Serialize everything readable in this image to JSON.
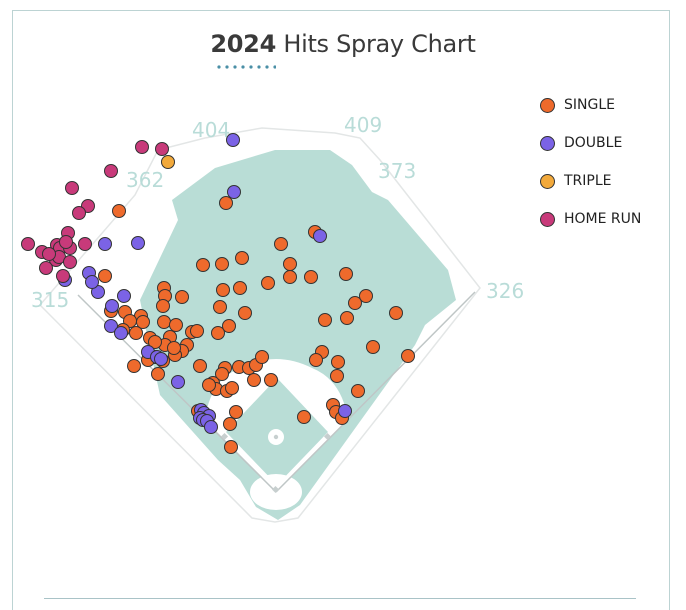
{
  "header": {
    "year": "2024",
    "title": "Hits Spray Chart"
  },
  "chart_data": {
    "type": "scatter",
    "title": "2024 Hits Spray Chart",
    "fence_distances": [
      "315",
      "362",
      "404",
      "409",
      "373",
      "326"
    ],
    "legend": [
      {
        "key": "single",
        "label": "SINGLE",
        "color": "#ee6a2c"
      },
      {
        "key": "double",
        "label": "DOUBLE",
        "color": "#7b63e6"
      },
      {
        "key": "triple",
        "label": "TRIPLE",
        "color": "#f2a93b"
      },
      {
        "key": "home_run",
        "label": "HOME RUN",
        "color": "#c83a7a"
      }
    ],
    "series": [
      {
        "name": "SINGLE",
        "color": "#ee6a2c",
        "points": [
          [
            119,
            211
          ],
          [
            226,
            203
          ],
          [
            315,
            232
          ],
          [
            281,
            244
          ],
          [
            222,
            264
          ],
          [
            242,
            258
          ],
          [
            203,
            265
          ],
          [
            290,
            264
          ],
          [
            311,
            277
          ],
          [
            290,
            277
          ],
          [
            268,
            283
          ],
          [
            346,
            274
          ],
          [
            105,
            276
          ],
          [
            164,
            288
          ],
          [
            240,
            288
          ],
          [
            223,
            290
          ],
          [
            182,
            297
          ],
          [
            165,
            296
          ],
          [
            366,
            296
          ],
          [
            355,
            303
          ],
          [
            163,
            306
          ],
          [
            245,
            313
          ],
          [
            220,
            307
          ],
          [
            111,
            311
          ],
          [
            141,
            316
          ],
          [
            143,
            322
          ],
          [
            164,
            322
          ],
          [
            125,
            312
          ],
          [
            130,
            321
          ],
          [
            347,
            318
          ],
          [
            325,
            320
          ],
          [
            396,
            313
          ],
          [
            176,
            325
          ],
          [
            123,
            330
          ],
          [
            229,
            326
          ],
          [
            136,
            333
          ],
          [
            192,
            332
          ],
          [
            197,
            331
          ],
          [
            218,
            333
          ],
          [
            170,
            337
          ],
          [
            150,
            338
          ],
          [
            165,
            345
          ],
          [
            155,
            342
          ],
          [
            187,
            345
          ],
          [
            182,
            351
          ],
          [
            175,
            355
          ],
          [
            174,
            348
          ],
          [
            322,
            352
          ],
          [
            316,
            360
          ],
          [
            338,
            362
          ],
          [
            373,
            347
          ],
          [
            408,
            356
          ],
          [
            155,
            357
          ],
          [
            148,
            360
          ],
          [
            163,
            361
          ],
          [
            158,
            374
          ],
          [
            200,
            366
          ],
          [
            225,
            368
          ],
          [
            239,
            367
          ],
          [
            249,
            368
          ],
          [
            256,
            365
          ],
          [
            262,
            357
          ],
          [
            254,
            380
          ],
          [
            271,
            380
          ],
          [
            222,
            374
          ],
          [
            213,
            383
          ],
          [
            337,
            376
          ],
          [
            358,
            391
          ],
          [
            216,
            389
          ],
          [
            227,
            391
          ],
          [
            209,
            385
          ],
          [
            232,
            388
          ],
          [
            304,
            417
          ],
          [
            236,
            412
          ],
          [
            230,
            424
          ],
          [
            333,
            405
          ],
          [
            336,
            412
          ],
          [
            342,
            418
          ],
          [
            199,
            412
          ],
          [
            231,
            447
          ],
          [
            134,
            366
          ],
          [
            198,
            411
          ]
        ]
      },
      {
        "name": "DOUBLE",
        "color": "#7b63e6",
        "points": [
          [
            233,
            140
          ],
          [
            234,
            192
          ],
          [
            320,
            236
          ],
          [
            105,
            244
          ],
          [
            138,
            243
          ],
          [
            89,
            273
          ],
          [
            65,
            280
          ],
          [
            98,
            292
          ],
          [
            124,
            296
          ],
          [
            112,
            306
          ],
          [
            92,
            282
          ],
          [
            111,
            326
          ],
          [
            121,
            333
          ],
          [
            148,
            352
          ],
          [
            157,
            357
          ],
          [
            161,
            359
          ],
          [
            178,
            382
          ],
          [
            201,
            410
          ],
          [
            204,
            413
          ],
          [
            209,
            416
          ],
          [
            200,
            418
          ],
          [
            203,
            420
          ],
          [
            207,
            421
          ],
          [
            211,
            427
          ],
          [
            345,
            411
          ]
        ]
      },
      {
        "name": "TRIPLE",
        "color": "#f2a93b",
        "points": [
          [
            168,
            162
          ]
        ]
      },
      {
        "name": "HOME RUN",
        "color": "#c83a7a",
        "points": [
          [
            142,
            147
          ],
          [
            162,
            149
          ],
          [
            111,
            171
          ],
          [
            72,
            188
          ],
          [
            88,
            206
          ],
          [
            79,
            213
          ],
          [
            28,
            244
          ],
          [
            42,
            252
          ],
          [
            57,
            245
          ],
          [
            60,
            248
          ],
          [
            68,
            233
          ],
          [
            70,
            248
          ],
          [
            66,
            242
          ],
          [
            85,
            244
          ],
          [
            56,
            260
          ],
          [
            59,
            257
          ],
          [
            70,
            262
          ],
          [
            46,
            268
          ],
          [
            63,
            276
          ],
          [
            49,
            254
          ]
        ]
      }
    ]
  }
}
